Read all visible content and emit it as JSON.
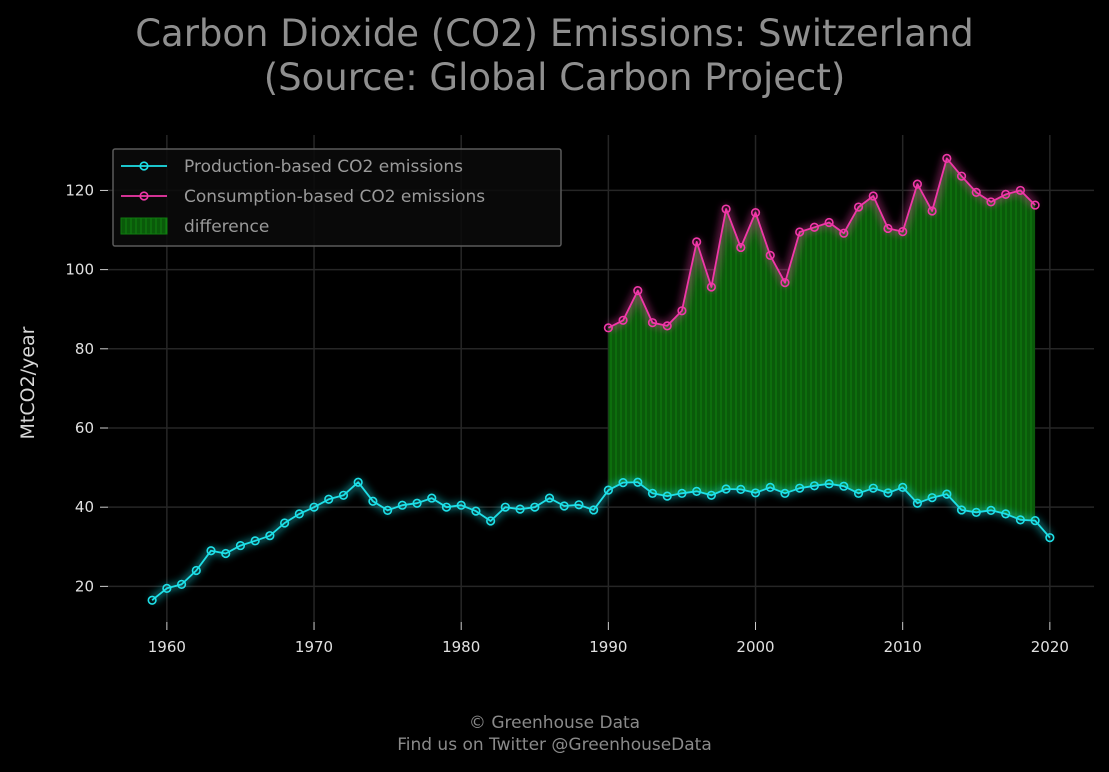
{
  "chart_data": {
    "type": "line",
    "title_line1": "Carbon Dioxide (CO2) Emissions: Switzerland",
    "title_line2": "(Source: Global Carbon Project)",
    "ylabel": "MtCO2/year",
    "xlabel": "",
    "xlim": [
      1956,
      2023
    ],
    "ylim": [
      11,
      134
    ],
    "xticks": [
      1960,
      1970,
      1980,
      1990,
      2000,
      2010,
      2020
    ],
    "yticks": [
      20,
      40,
      60,
      80,
      100,
      120
    ],
    "grid": true,
    "legend_position": "top-left",
    "series": [
      {
        "name": "Production-based CO2 emissions",
        "color": "#1ee0e8",
        "x": [
          1959,
          1960,
          1961,
          1962,
          1963,
          1964,
          1965,
          1966,
          1967,
          1968,
          1969,
          1970,
          1971,
          1972,
          1973,
          1974,
          1975,
          1976,
          1977,
          1978,
          1979,
          1980,
          1981,
          1982,
          1983,
          1984,
          1985,
          1986,
          1987,
          1988,
          1989,
          1990,
          1991,
          1992,
          1993,
          1994,
          1995,
          1996,
          1997,
          1998,
          1999,
          2000,
          2001,
          2002,
          2003,
          2004,
          2005,
          2006,
          2007,
          2008,
          2009,
          2010,
          2011,
          2012,
          2013,
          2014,
          2015,
          2016,
          2017,
          2018,
          2019,
          2020
        ],
        "values": [
          16.5,
          19.5,
          20.5,
          24.0,
          29.0,
          28.3,
          30.3,
          31.5,
          32.8,
          36.0,
          38.3,
          40.0,
          42.0,
          43.0,
          46.3,
          41.5,
          39.2,
          40.5,
          41.0,
          42.3,
          40.0,
          40.5,
          39.0,
          36.5,
          40.0,
          39.5,
          40.0,
          42.3,
          40.3,
          40.6,
          39.3,
          44.3,
          46.2,
          46.3,
          43.5,
          42.8,
          43.5,
          44.0,
          43.0,
          44.6,
          44.5,
          43.6,
          45.0,
          43.5,
          44.8,
          45.4,
          45.9,
          45.3,
          43.5,
          44.8,
          43.6,
          45.0,
          41.0,
          42.4,
          43.3,
          39.3,
          38.7,
          39.2,
          38.3,
          36.8,
          36.6,
          32.3
        ]
      },
      {
        "name": "Consumption-based CO2 emissions",
        "color": "#f038a8",
        "x": [
          1990,
          1991,
          1992,
          1993,
          1994,
          1995,
          1996,
          1997,
          1998,
          1999,
          2000,
          2001,
          2002,
          2003,
          2004,
          2005,
          2006,
          2007,
          2008,
          2009,
          2010,
          2011,
          2012,
          2013,
          2014,
          2015,
          2016,
          2017,
          2018,
          2019
        ],
        "values": [
          85.3,
          87.2,
          94.7,
          86.6,
          85.8,
          89.6,
          107.0,
          95.6,
          115.3,
          105.6,
          114.4,
          103.6,
          96.7,
          109.5,
          110.7,
          111.9,
          109.2,
          115.8,
          118.6,
          110.4,
          109.6,
          121.6,
          114.8,
          128.1,
          123.6,
          119.5,
          117.1,
          119.0,
          120.0,
          116.3
        ]
      }
    ],
    "fill": {
      "name": "difference",
      "color": "#0c8a0c",
      "between": [
        "Consumption-based CO2 emissions",
        "Production-based CO2 emissions"
      ],
      "x_range": [
        1990,
        2019
      ]
    }
  },
  "footer": {
    "line1": "© Greenhouse Data",
    "line2": "Find us on Twitter @GreenhouseData"
  }
}
